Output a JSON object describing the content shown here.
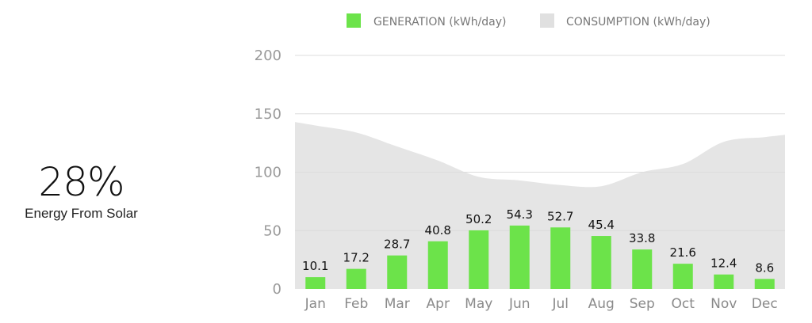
{
  "summary": {
    "percent": "28%",
    "label": "Energy From Solar"
  },
  "chart_data": {
    "type": "bar",
    "categories": [
      "Jan",
      "Feb",
      "Mar",
      "Apr",
      "May",
      "Jun",
      "Jul",
      "Aug",
      "Sep",
      "Oct",
      "Nov",
      "Dec"
    ],
    "series": [
      {
        "name": "GENERATION (kWh/day)",
        "type": "bar",
        "color": "#6ce34a",
        "values": [
          10.1,
          17.2,
          28.7,
          40.8,
          50.2,
          54.3,
          52.7,
          45.4,
          33.8,
          21.6,
          12.4,
          8.6
        ],
        "labels": [
          "10.1",
          "17.2",
          "28.7",
          "40.8",
          "50.2",
          "54.3",
          "52.7",
          "45.4",
          "33.8",
          "21.6",
          "12.4",
          "8.6"
        ]
      },
      {
        "name": "CONSUMPTION (kWh/day)",
        "type": "area",
        "color": "#e5e5e5",
        "values": [
          140,
          134,
          122,
          110,
          96,
          93,
          89,
          88,
          100,
          107,
          126,
          130
        ]
      }
    ],
    "ylim": [
      0,
      200
    ],
    "yticks": [
      "0",
      "50",
      "100",
      "150",
      "200"
    ],
    "grid": true,
    "legend": "top"
  }
}
